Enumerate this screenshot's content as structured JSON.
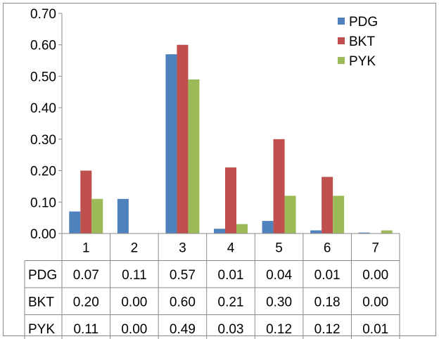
{
  "chart_data": {
    "type": "bar",
    "categories": [
      "1",
      "2",
      "3",
      "4",
      "5",
      "6",
      "7"
    ],
    "series": [
      {
        "name": "PDG",
        "color": "#4f81bd",
        "values": [
          0.07,
          0.11,
          0.57,
          0.015,
          0.04,
          0.01,
          0.003
        ],
        "table_values": [
          "0.07",
          "0.11",
          "0.57",
          "0.01",
          "0.04",
          "0.01",
          "0.00"
        ]
      },
      {
        "name": "BKT",
        "color": "#c0504d",
        "values": [
          0.2,
          0.0,
          0.6,
          0.21,
          0.3,
          0.18,
          0.0
        ],
        "table_values": [
          "0.20",
          "0.00",
          "0.60",
          "0.21",
          "0.30",
          "0.18",
          "0.00"
        ]
      },
      {
        "name": "PYK",
        "color": "#9bbb59",
        "values": [
          0.11,
          0.0,
          0.49,
          0.03,
          0.12,
          0.12,
          0.01
        ],
        "table_values": [
          "0.11",
          "0.00",
          "0.49",
          "0.03",
          "0.12",
          "0.12",
          "0.01"
        ]
      }
    ],
    "yticks": [
      "0.00",
      "0.10",
      "0.20",
      "0.30",
      "0.40",
      "0.50",
      "0.60",
      "0.70"
    ],
    "ylim": [
      0,
      0.7
    ],
    "grid": false,
    "legend_position": "top-right",
    "data_table": true,
    "title": "",
    "xlabel": "",
    "ylabel": ""
  }
}
